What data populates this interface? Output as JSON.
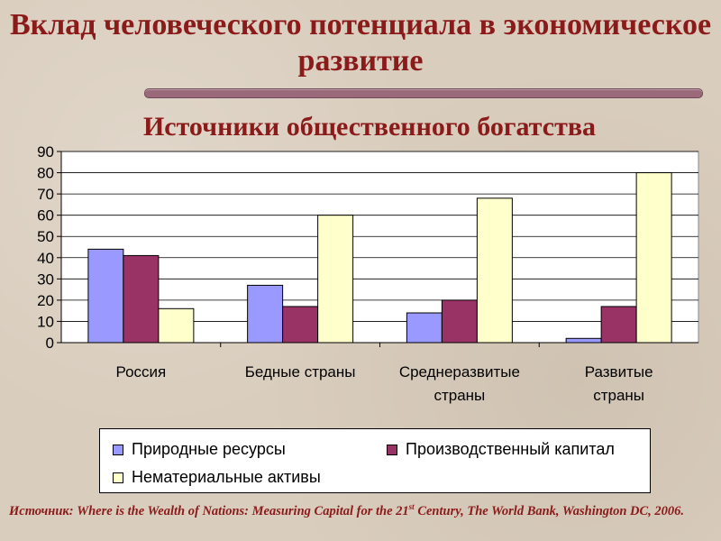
{
  "title": "Вклад человеческого потенциала в экономическое развитие",
  "source": {
    "before": "Источник: Where is the Wealth of Nations: Measuring Capital for the 21",
    "sup": "st",
    "after": " Century, The World Bank, Washington DC, 2006."
  },
  "colors": {
    "natural": "#9999ff",
    "produced": "#993366",
    "intangible": "#ffffcc",
    "title": "#8b1a1a",
    "plot_bg": "#ffffff"
  },
  "chart_data": {
    "type": "bar",
    "title": "Источники общественного богатства",
    "xlabel": "",
    "ylabel": "",
    "ylim": [
      0,
      90
    ],
    "yticks": [
      0,
      10,
      20,
      30,
      40,
      50,
      60,
      70,
      80,
      90
    ],
    "grid": true,
    "legend_position": "bottom",
    "categories": [
      [
        "Россия"
      ],
      [
        "Бедные страны"
      ],
      [
        "Среднеразвитые",
        "страны"
      ],
      [
        "Развитые",
        "страны"
      ]
    ],
    "series": [
      {
        "name": "Природные ресурсы",
        "values": [
          44,
          27,
          14,
          2
        ]
      },
      {
        "name": "Производственный капитал",
        "values": [
          41,
          17,
          20,
          17
        ]
      },
      {
        "name": "Нематериальные активы",
        "values": [
          16,
          60,
          68,
          80
        ]
      }
    ]
  }
}
